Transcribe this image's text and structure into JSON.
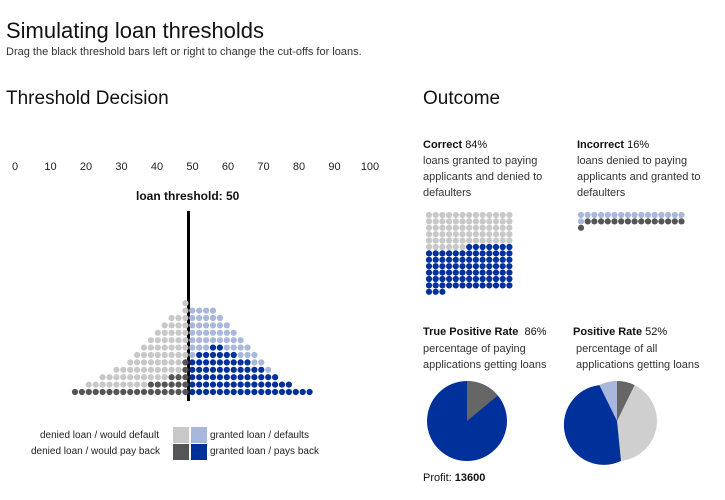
{
  "header": {
    "title": "Simulating loan thresholds",
    "subtitle": "Drag the black threshold bars left or right to change the cut-offs for loans."
  },
  "left": {
    "heading": "Threshold Decision",
    "axis_ticks": [
      "0",
      "10",
      "20",
      "30",
      "40",
      "50",
      "60",
      "70",
      "80",
      "90",
      "100"
    ],
    "threshold_label": "loan threshold: 50",
    "threshold_value": 50,
    "legend": {
      "denied_default": "denied loan / would default",
      "denied_payback": "denied loan / would pay back",
      "granted_default": "granted loan / defaults",
      "granted_payback": "granted loan / pays back"
    }
  },
  "right": {
    "heading": "Outcome",
    "correct": {
      "label": "Correct",
      "value": "84%",
      "desc": "loans granted to paying applicants and denied to defaulters"
    },
    "incorrect": {
      "label": "Incorrect",
      "value": "16%",
      "desc": "loans denied to paying applicants and granted to defaulters"
    },
    "tpr": {
      "label": "True Positive Rate",
      "value": "86%",
      "desc": "percentage of paying applications getting loans",
      "fraction": 0.86
    },
    "pr": {
      "label": "Positive Rate",
      "value": "52%",
      "desc": "percentage of all applications getting loans",
      "fraction": 0.52
    },
    "profit_label": "Profit:",
    "profit_value": "13600"
  },
  "colors": {
    "denied_default": "#c8c8c8",
    "denied_payback": "#555555",
    "granted_default": "#a9b7dd",
    "granted_payback": "#00309a",
    "pie_gray": "#cfcfcf",
    "pie_dark": "#666666"
  }
}
